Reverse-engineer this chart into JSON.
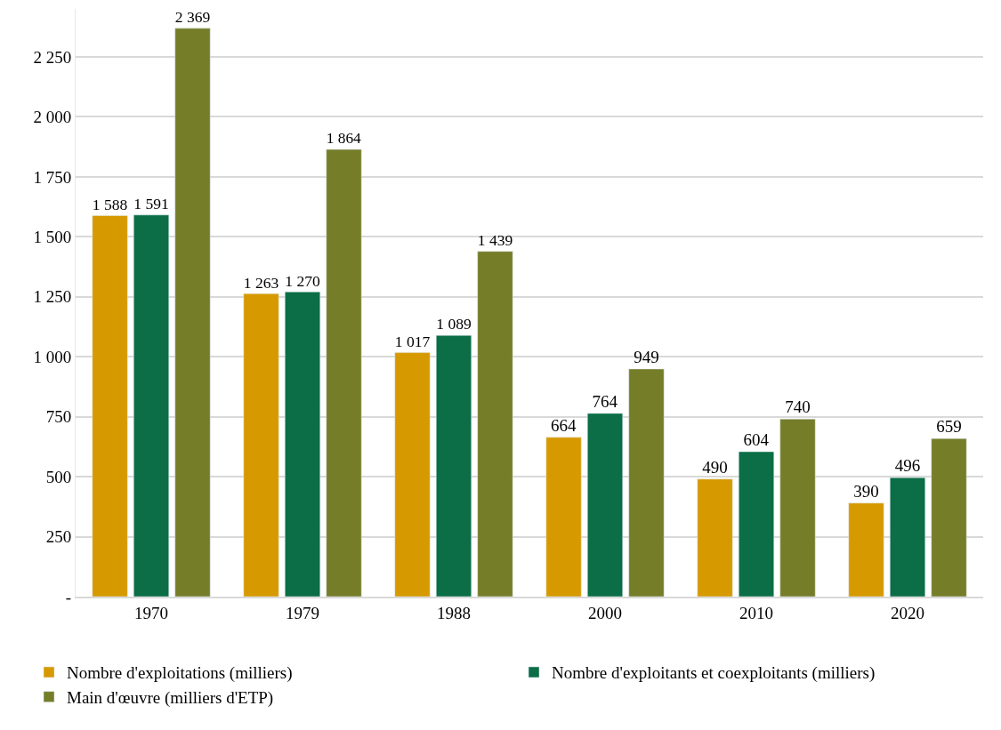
{
  "chart_data": {
    "type": "bar",
    "categories": [
      "1970",
      "1979",
      "1988",
      "2000",
      "2010",
      "2020"
    ],
    "series": [
      {
        "name": "Nombre d'exploitations (milliers)",
        "color": "#d69a00",
        "values": [
          1588,
          1263,
          1017,
          664,
          490,
          390
        ],
        "value_labels": [
          "1 588",
          "1 263",
          "1 017",
          "664",
          "490",
          "390"
        ]
      },
      {
        "name": "Nombre d'exploitants et coexploitants (milliers)",
        "color": "#0b6e46",
        "values": [
          1591,
          1270,
          1089,
          764,
          604,
          496
        ],
        "value_labels": [
          "1 591",
          "1 270",
          "1 089",
          "764",
          "604",
          "496"
        ]
      },
      {
        "name": "Main d'œuvre (milliers d'ETP)",
        "color": "#757d29",
        "values": [
          2369,
          1864,
          1439,
          949,
          740,
          659
        ],
        "value_labels": [
          "2 369",
          "1 864",
          "1 439",
          "949",
          "740",
          "659"
        ]
      }
    ],
    "ylim": [
      0,
      2450
    ],
    "yticks": [
      {
        "value": 0,
        "label": "-"
      },
      250,
      500,
      750,
      {
        "value": 1000,
        "label": "1 000"
      },
      {
        "value": 1250,
        "label": "1 250"
      },
      {
        "value": 1500,
        "label": "1 500"
      },
      {
        "value": 1750,
        "label": "1 750"
      },
      {
        "value": 2000,
        "label": "2 000"
      },
      {
        "value": 2250,
        "label": "2 250"
      }
    ],
    "grid": "y",
    "legend": "bottom"
  }
}
